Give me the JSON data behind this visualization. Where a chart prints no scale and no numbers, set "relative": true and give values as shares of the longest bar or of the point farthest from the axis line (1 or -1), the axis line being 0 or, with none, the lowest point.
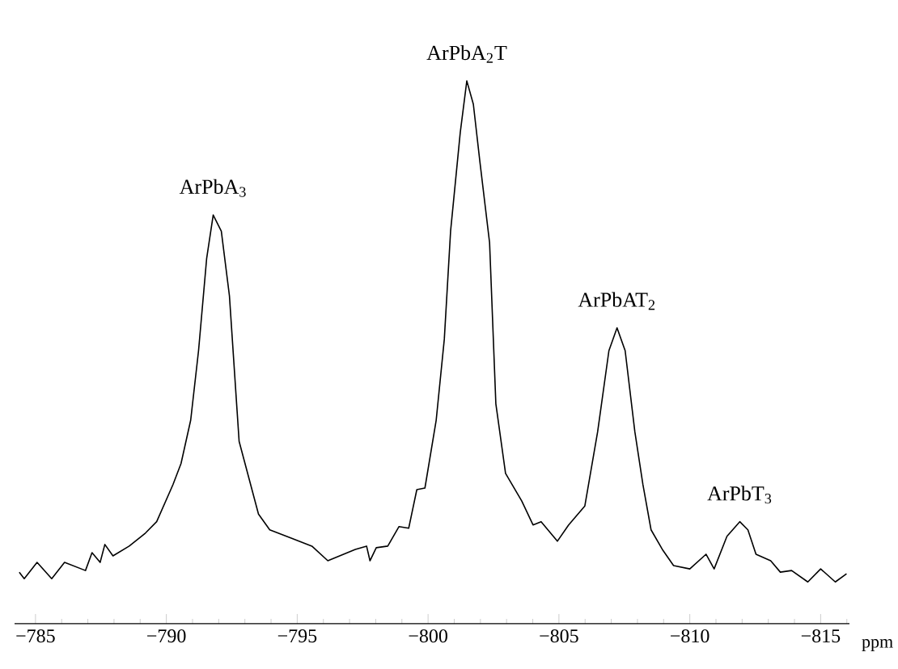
{
  "chart_data": {
    "type": "line",
    "relative": true,
    "xlabel": "ppm",
    "xlim": [
      -784.2,
      -816.1
    ],
    "xticks": [
      {
        "value": -785,
        "label": "−785"
      },
      {
        "value": -786,
        "label": null
      },
      {
        "value": -787,
        "label": null
      },
      {
        "value": -788,
        "label": null
      },
      {
        "value": -789,
        "label": null
      },
      {
        "value": -790,
        "label": "−790"
      },
      {
        "value": -791,
        "label": null
      },
      {
        "value": -792,
        "label": null
      },
      {
        "value": -793,
        "label": null
      },
      {
        "value": -794,
        "label": null
      },
      {
        "value": -795,
        "label": "−795"
      },
      {
        "value": -796,
        "label": null
      },
      {
        "value": -797,
        "label": null
      },
      {
        "value": -798,
        "label": null
      },
      {
        "value": -799,
        "label": null
      },
      {
        "value": -800,
        "label": "−800"
      },
      {
        "value": -801,
        "label": null
      },
      {
        "value": -802,
        "label": null
      },
      {
        "value": -803,
        "label": null
      },
      {
        "value": -804,
        "label": null
      },
      {
        "value": -805,
        "label": "−805"
      },
      {
        "value": -806,
        "label": null
      },
      {
        "value": -807,
        "label": null
      },
      {
        "value": -808,
        "label": null
      },
      {
        "value": -809,
        "label": null
      },
      {
        "value": -810,
        "label": "−810"
      },
      {
        "value": -811,
        "label": null
      },
      {
        "value": -812,
        "label": null
      },
      {
        "value": -813,
        "label": null
      },
      {
        "value": -814,
        "label": null
      },
      {
        "value": -815,
        "label": "−815"
      },
      {
        "value": -816,
        "label": null
      }
    ],
    "x": [
      -784.38,
      -784.57,
      -785.06,
      -785.62,
      -786.11,
      -786.91,
      -787.16,
      -787.47,
      -787.65,
      -787.96,
      -788.58,
      -789.2,
      -789.63,
      -790.25,
      -790.56,
      -790.93,
      -791.23,
      -791.54,
      -791.79,
      -792.1,
      -792.41,
      -792.78,
      -793.52,
      -793.95,
      -794.75,
      -795.56,
      -796.17,
      -797.22,
      -797.65,
      -797.78,
      -798.02,
      -798.46,
      -798.89,
      -799.26,
      -799.57,
      -799.88,
      -800.31,
      -800.62,
      -800.86,
      -801.23,
      -801.48,
      -801.73,
      -801.98,
      -802.35,
      -802.59,
      -802.96,
      -803.58,
      -804.01,
      -804.32,
      -804.94,
      -805.37,
      -805.99,
      -806.48,
      -806.91,
      -807.22,
      -807.53,
      -807.9,
      -808.21,
      -808.52,
      -808.95,
      -809.38,
      -810.0,
      -810.62,
      -810.93,
      -811.42,
      -811.91,
      -812.22,
      -812.53,
      -813.09,
      -813.46,
      -813.89,
      -814.51,
      -815.0,
      -815.56,
      -815.99
    ],
    "series": [
      {
        "color": "#000000",
        "values": [
          0.095,
          0.083,
          0.113,
          0.083,
          0.113,
          0.098,
          0.131,
          0.113,
          0.146,
          0.125,
          0.143,
          0.167,
          0.188,
          0.256,
          0.295,
          0.375,
          0.503,
          0.673,
          0.753,
          0.723,
          0.604,
          0.336,
          0.202,
          0.173,
          0.158,
          0.143,
          0.116,
          0.137,
          0.143,
          0.116,
          0.14,
          0.143,
          0.179,
          0.176,
          0.247,
          0.25,
          0.375,
          0.524,
          0.723,
          0.905,
          1.0,
          0.957,
          0.851,
          0.702,
          0.405,
          0.277,
          0.226,
          0.182,
          0.188,
          0.152,
          0.182,
          0.217,
          0.354,
          0.503,
          0.545,
          0.503,
          0.354,
          0.256,
          0.173,
          0.137,
          0.107,
          0.101,
          0.128,
          0.101,
          0.161,
          0.188,
          0.173,
          0.128,
          0.116,
          0.095,
          0.098,
          0.077,
          0.101,
          0.077,
          0.092
        ]
      }
    ],
    "annotations": [
      {
        "text": "ArPbA$_{3}$",
        "x": -791.79,
        "y": 0.753
      },
      {
        "text": "ArPbA$_{2}$T",
        "x": -801.48,
        "y": 1.0
      },
      {
        "text": "ArPbAT$_{2}$",
        "x": -807.22,
        "y": 0.545
      },
      {
        "text": "ArPbT$_{3}$",
        "x": -811.91,
        "y": 0.188
      }
    ]
  }
}
